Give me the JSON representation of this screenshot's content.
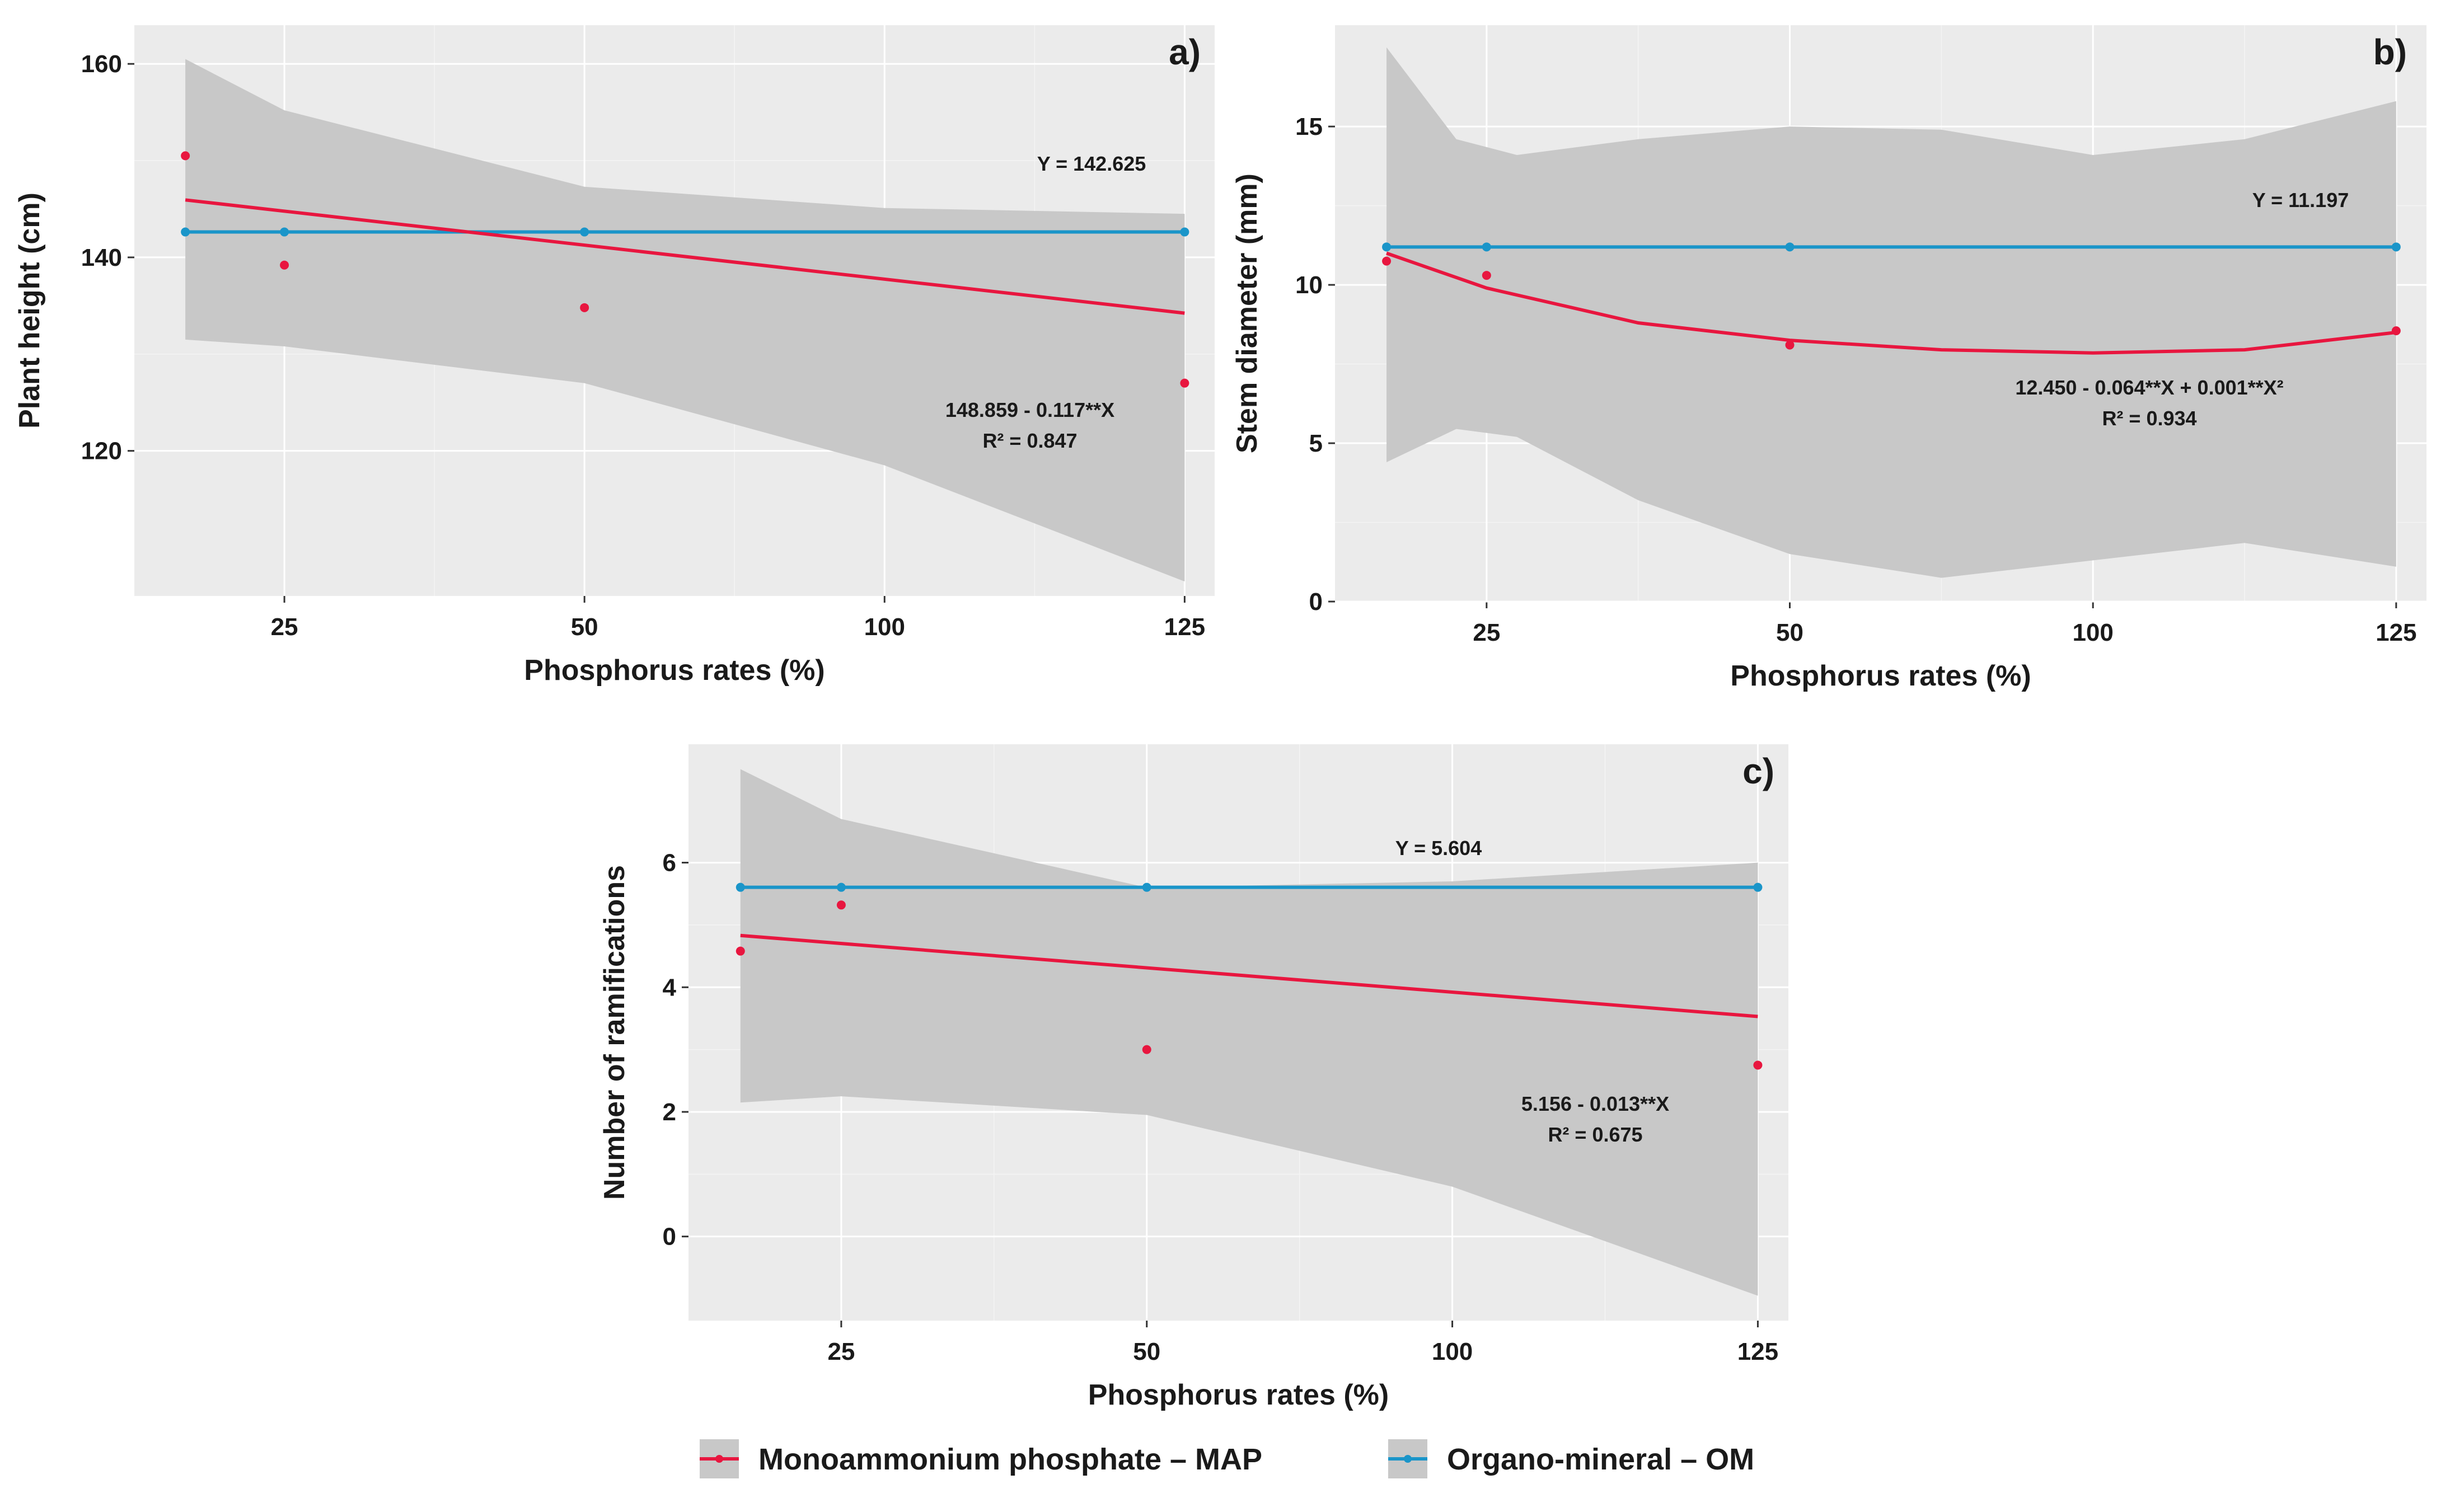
{
  "colors": {
    "map": "#e8163f",
    "om": "#1a95c9",
    "ribbon": "#c8c8c8",
    "panel": "#ebebeb"
  },
  "legend": {
    "map_label": "Monoammonium phosphate – MAP",
    "om_label": "Organo-mineral – OM"
  },
  "chart_data": [
    {
      "type": "line",
      "id": "a",
      "tag": "a)",
      "xlabel": "Phosphorus rates (%)",
      "ylabel": "Plant height (cm)",
      "xticks": [
        "25",
        "50",
        "100",
        "125"
      ],
      "yticks": [
        "120",
        "140",
        "160"
      ],
      "ytick_values": [
        120,
        140,
        160
      ],
      "ylim": [
        105,
        164
      ],
      "x_positions": [
        1,
        2,
        3,
        4
      ],
      "x_domain": [
        0.5,
        4.1
      ],
      "data_x": [
        0.67,
        1.0,
        2.0,
        4.0
      ],
      "map_points": [
        150.5,
        139.2,
        134.8,
        127.0
      ],
      "om_points": [
        142.625,
        142.625,
        142.625,
        142.625
      ],
      "map_fit": {
        "kind": "linear",
        "a": 148.859,
        "b": -0.117,
        "x_from": 0.67,
        "x_to": 4.0
      },
      "band": {
        "x": [
          0.67,
          1.0,
          2.0,
          3.0,
          4.0
        ],
        "upper": [
          160.5,
          155.2,
          147.3,
          145.1,
          144.5
        ],
        "lower": [
          131.5,
          130.8,
          127.0,
          118.5,
          106.5
        ]
      },
      "om_label": "Y = 142.625",
      "eq_line1": "148.859 - 0.117**X",
      "eq_line2": "R² = 0.847"
    },
    {
      "type": "line",
      "id": "b",
      "tag": "b)",
      "xlabel": "Phosphorus rates (%)",
      "ylabel": "Stem diameter (mm)",
      "xticks": [
        "25",
        "50",
        "100",
        "125"
      ],
      "yticks": [
        "0",
        "5",
        "10",
        "15"
      ],
      "ytick_values": [
        0,
        5,
        10,
        15
      ],
      "ylim": [
        0,
        18.2
      ],
      "x_positions": [
        1,
        2,
        3,
        4
      ],
      "x_domain": [
        0.5,
        4.1
      ],
      "data_x": [
        0.67,
        1.0,
        2.0,
        4.0
      ],
      "map_points": [
        10.75,
        10.3,
        8.1,
        8.55
      ],
      "om_points": [
        11.197,
        11.197,
        11.197,
        11.197
      ],
      "map_fit": {
        "kind": "curve",
        "x": [
          0.67,
          1.0,
          1.5,
          2.0,
          2.5,
          3.0,
          3.5,
          4.0
        ],
        "y": [
          11.0,
          9.9,
          8.8,
          8.25,
          7.95,
          7.85,
          7.95,
          8.5
        ]
      },
      "band": {
        "x": [
          0.67,
          0.9,
          1.1,
          1.5,
          2.0,
          2.5,
          3.0,
          3.5,
          4.0
        ],
        "upper": [
          17.5,
          14.6,
          14.1,
          14.6,
          15.0,
          14.9,
          14.1,
          14.6,
          15.8
        ],
        "lower": [
          4.4,
          5.45,
          5.2,
          3.2,
          1.5,
          0.75,
          1.3,
          1.85,
          1.1
        ]
      },
      "om_label": "Y = 11.197",
      "eq_line1": "12.450 - 0.064**X + 0.001**X²",
      "eq_line2": "R² = 0.934"
    },
    {
      "type": "line",
      "id": "c",
      "tag": "c)",
      "xlabel": "Phosphorus rates (%)",
      "ylabel": "Number of ramifications",
      "xticks": [
        "25",
        "50",
        "100",
        "125"
      ],
      "yticks": [
        "0",
        "2",
        "4",
        "6"
      ],
      "ytick_values": [
        0,
        2,
        4,
        6
      ],
      "ylim": [
        -1.35,
        7.9
      ],
      "x_positions": [
        1,
        2,
        3,
        4
      ],
      "x_domain": [
        0.5,
        4.1
      ],
      "data_x": [
        0.67,
        1.0,
        2.0,
        4.0
      ],
      "map_points": [
        4.58,
        5.32,
        3.0,
        2.75
      ],
      "om_points": [
        5.604,
        5.604,
        5.604,
        5.604
      ],
      "map_fit": {
        "kind": "linear",
        "a": 5.156,
        "b": -0.013,
        "x_from": 0.67,
        "x_to": 4.0
      },
      "band": {
        "x": [
          0.67,
          1.0,
          2.0,
          3.0,
          4.0
        ],
        "upper": [
          7.5,
          6.7,
          5.6,
          5.7,
          6.0
        ],
        "lower": [
          2.15,
          2.25,
          1.95,
          0.8,
          -0.95
        ]
      },
      "om_label": "Y = 5.604",
      "eq_line1": "5.156 - 0.013**X",
      "eq_line2": "R² = 0.675"
    }
  ]
}
